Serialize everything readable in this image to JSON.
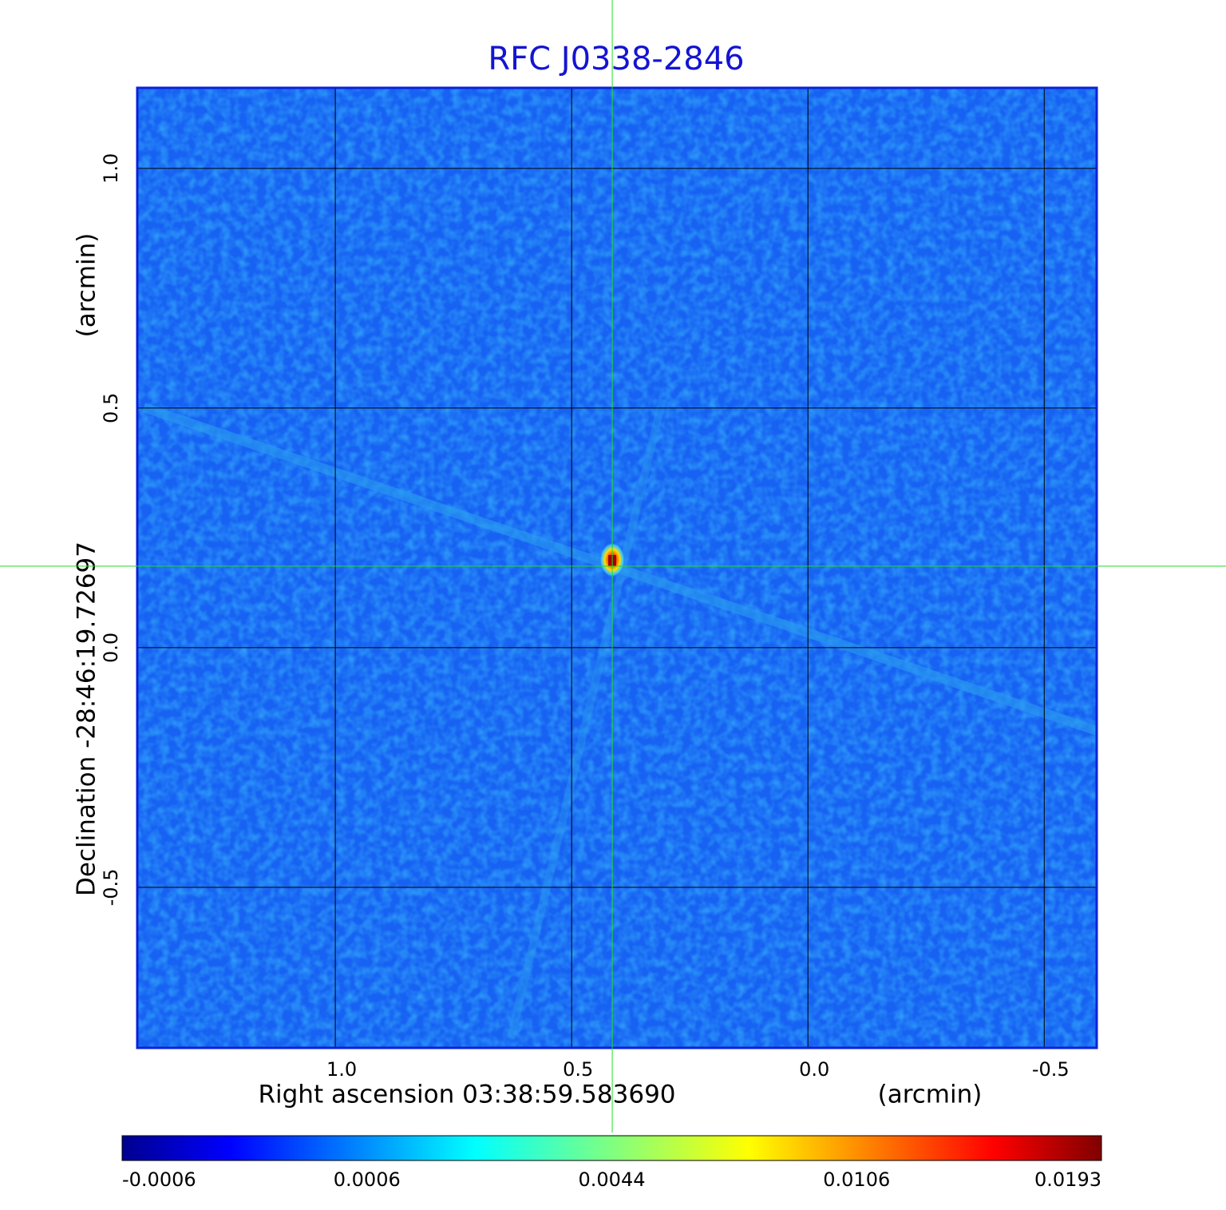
{
  "chart_data": {
    "type": "image",
    "title": "RFC J0338-2846",
    "xlabel": "Right ascension  03:38:59.583690",
    "xunit": "(arcmin)",
    "ylabel": "Declination  -28:46:19.72697",
    "yunit": "(arcmin)",
    "xlim": [
      1.419,
      -0.611
    ],
    "ylim": [
      -0.835,
      1.168
    ],
    "xticks": [
      {
        "value": 1.0,
        "label": "1.0"
      },
      0.5,
      {
        "value": 0,
        "label": "0.0"
      },
      -0.5
    ],
    "yticks": [
      {
        "value": 1.0,
        "label": "1.0"
      },
      0.5,
      {
        "value": 0,
        "label": "0.0"
      },
      -0.5
    ],
    "grid": true,
    "crosshair": {
      "x": 0.414,
      "y": 0.17,
      "color": "#22dd22"
    },
    "colorbar_ticks": [
      -0.0006,
      0.0006,
      0.0044,
      0.0106,
      0.0193
    ]
  }
}
